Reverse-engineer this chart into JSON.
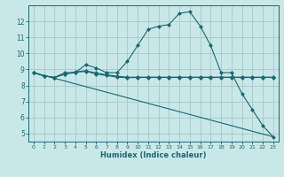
{
  "title": "",
  "xlabel": "Humidex (Indice chaleur)",
  "ylabel": "",
  "bg_color": "#c8e8e8",
  "grid_color": "#a8c8c8",
  "line_color": "#1a6870",
  "xlim": [
    -0.5,
    23.5
  ],
  "ylim": [
    4.5,
    13.0
  ],
  "yticks": [
    5,
    6,
    7,
    8,
    9,
    10,
    11,
    12
  ],
  "xticks": [
    0,
    1,
    2,
    3,
    4,
    5,
    6,
    7,
    8,
    9,
    10,
    11,
    12,
    13,
    14,
    15,
    16,
    17,
    18,
    19,
    20,
    21,
    22,
    23
  ],
  "series": [
    {
      "x": [
        0,
        1,
        2,
        3,
        4,
        5,
        6,
        7,
        8,
        9,
        10,
        11,
        12,
        13,
        14,
        15,
        16,
        17,
        18,
        19,
        20,
        21,
        22,
        23
      ],
      "y": [
        8.8,
        8.6,
        8.5,
        8.8,
        8.8,
        9.3,
        9.1,
        8.8,
        8.8,
        9.5,
        10.5,
        11.5,
        11.7,
        11.8,
        12.5,
        12.6,
        11.7,
        10.5,
        8.8,
        8.8,
        7.5,
        6.5,
        5.5,
        4.8
      ],
      "marker": "D",
      "markersize": 2.0
    },
    {
      "x": [
        0,
        1,
        2,
        3,
        4,
        5,
        6,
        7,
        8,
        9,
        10,
        11,
        12,
        13,
        14,
        15,
        16,
        17,
        18,
        19,
        20,
        21,
        22,
        23
      ],
      "y": [
        8.8,
        8.6,
        8.5,
        8.7,
        8.82,
        8.88,
        8.72,
        8.62,
        8.52,
        8.48,
        8.5,
        8.5,
        8.5,
        8.5,
        8.5,
        8.5,
        8.5,
        8.5,
        8.5,
        8.5,
        8.5,
        8.5,
        8.5,
        8.5
      ],
      "marker": "D",
      "markersize": 2.0
    },
    {
      "x": [
        0,
        1,
        2,
        3,
        4,
        5,
        6,
        7,
        8,
        9,
        10,
        11,
        12,
        13,
        14,
        15,
        16,
        17,
        18,
        19,
        20,
        21,
        22,
        23
      ],
      "y": [
        8.8,
        8.6,
        8.5,
        8.72,
        8.85,
        8.92,
        8.78,
        8.67,
        8.58,
        8.52,
        8.52,
        8.52,
        8.52,
        8.52,
        8.52,
        8.52,
        8.52,
        8.52,
        8.52,
        8.52,
        8.52,
        8.52,
        8.52,
        8.52
      ],
      "marker": "D",
      "markersize": 2.0
    },
    {
      "x": [
        0,
        23
      ],
      "y": [
        8.8,
        4.8
      ],
      "marker": null,
      "markersize": 0
    }
  ]
}
